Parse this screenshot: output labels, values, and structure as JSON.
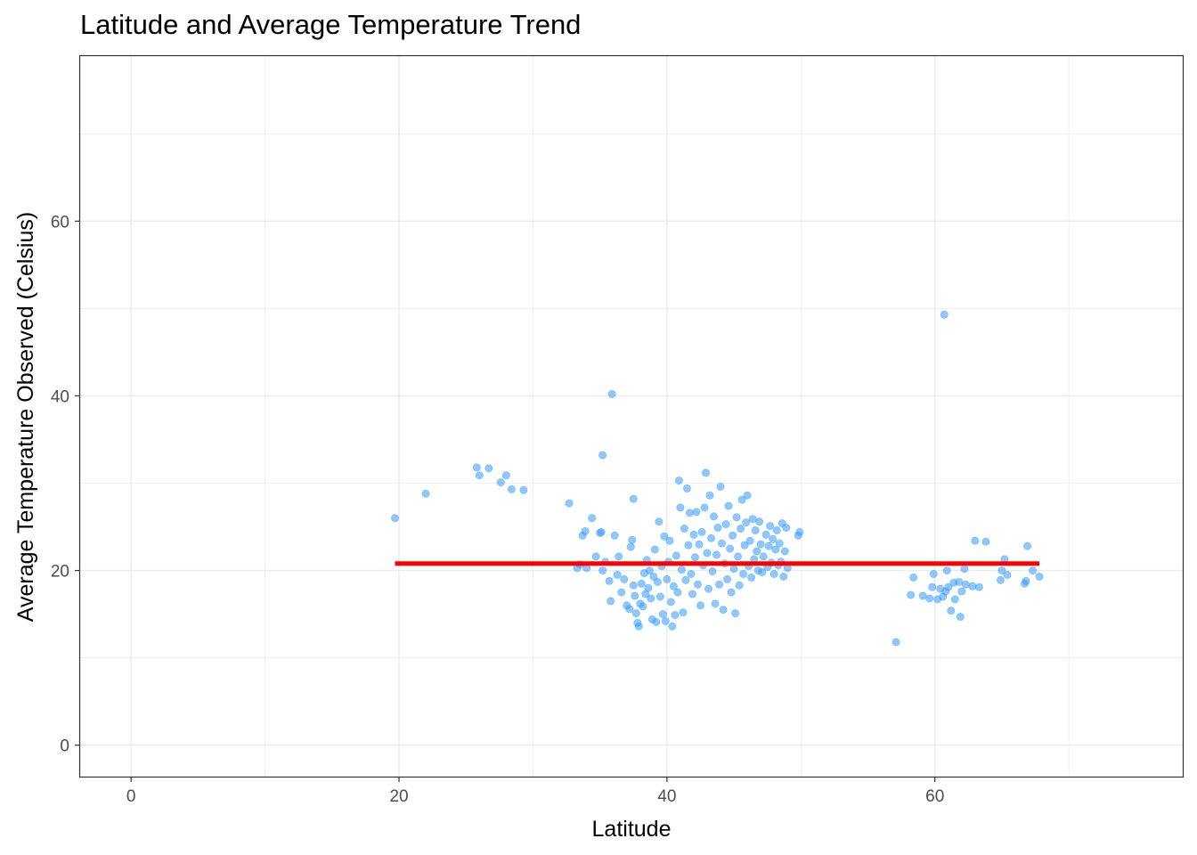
{
  "chart_data": {
    "type": "scatter",
    "title": "Latitude and Average Temperature Trend",
    "xlabel": "Latitude",
    "ylabel": "Average Temperature Observed (Celsius)",
    "xlim": [
      -3.8,
      78.5
    ],
    "ylim": [
      -3.6,
      78.9
    ],
    "x_ticks": [
      0,
      20,
      40,
      60
    ],
    "y_ticks": [
      0,
      20,
      40,
      60
    ],
    "grid": true,
    "point_color": "#3399ff",
    "trend_color": "#ff0000",
    "trend_line": {
      "x": [
        19.7,
        67.8
      ],
      "y": [
        20.8,
        20.8
      ]
    },
    "points": [
      [
        19.7,
        26.0
      ],
      [
        22.0,
        28.8
      ],
      [
        25.8,
        31.8
      ],
      [
        26.0,
        30.9
      ],
      [
        26.7,
        31.7
      ],
      [
        27.6,
        30.1
      ],
      [
        28.0,
        30.9
      ],
      [
        28.4,
        29.3
      ],
      [
        29.3,
        29.2
      ],
      [
        32.7,
        27.7
      ],
      [
        33.3,
        20.3
      ],
      [
        33.5,
        20.7
      ],
      [
        33.7,
        24.0
      ],
      [
        33.9,
        24.5
      ],
      [
        34.0,
        20.3
      ],
      [
        34.4,
        26.0
      ],
      [
        34.7,
        21.6
      ],
      [
        35.0,
        24.3
      ],
      [
        35.1,
        24.4
      ],
      [
        35.2,
        33.2
      ],
      [
        35.2,
        20.0
      ],
      [
        35.4,
        21.0
      ],
      [
        35.7,
        18.8
      ],
      [
        35.8,
        16.5
      ],
      [
        35.9,
        40.2
      ],
      [
        36.1,
        24.0
      ],
      [
        36.3,
        19.5
      ],
      [
        36.4,
        21.6
      ],
      [
        36.6,
        17.5
      ],
      [
        36.8,
        19.0
      ],
      [
        37.0,
        16.0
      ],
      [
        37.2,
        15.6
      ],
      [
        37.3,
        22.7
      ],
      [
        37.4,
        23.5
      ],
      [
        37.5,
        28.2
      ],
      [
        37.5,
        18.3
      ],
      [
        37.6,
        17.1
      ],
      [
        37.7,
        15.1
      ],
      [
        37.8,
        14.0
      ],
      [
        37.9,
        13.6
      ],
      [
        38.0,
        16.2
      ],
      [
        38.1,
        18.5
      ],
      [
        38.2,
        15.9
      ],
      [
        38.3,
        19.7
      ],
      [
        38.4,
        17.3
      ],
      [
        38.5,
        21.2
      ],
      [
        38.6,
        18.0
      ],
      [
        38.7,
        20.0
      ],
      [
        38.8,
        16.8
      ],
      [
        38.9,
        14.4
      ],
      [
        39.0,
        19.3
      ],
      [
        39.1,
        22.4
      ],
      [
        39.2,
        14.1
      ],
      [
        39.3,
        18.7
      ],
      [
        39.4,
        25.6
      ],
      [
        39.5,
        17.0
      ],
      [
        39.6,
        20.5
      ],
      [
        39.7,
        15.0
      ],
      [
        39.8,
        23.9
      ],
      [
        39.9,
        14.2
      ],
      [
        40.0,
        19.0
      ],
      [
        40.1,
        21.0
      ],
      [
        40.2,
        23.4
      ],
      [
        40.3,
        16.4
      ],
      [
        40.4,
        13.6
      ],
      [
        40.5,
        18.2
      ],
      [
        40.6,
        14.9
      ],
      [
        40.7,
        21.7
      ],
      [
        40.8,
        17.5
      ],
      [
        40.9,
        30.3
      ],
      [
        41.0,
        27.2
      ],
      [
        41.1,
        20.1
      ],
      [
        41.2,
        15.2
      ],
      [
        41.3,
        24.8
      ],
      [
        41.4,
        18.9
      ],
      [
        41.5,
        29.4
      ],
      [
        41.6,
        22.9
      ],
      [
        41.7,
        26.6
      ],
      [
        41.8,
        19.6
      ],
      [
        41.9,
        17.3
      ],
      [
        42.0,
        24.1
      ],
      [
        42.1,
        21.5
      ],
      [
        42.2,
        26.7
      ],
      [
        42.3,
        18.4
      ],
      [
        42.4,
        23.0
      ],
      [
        42.5,
        16.0
      ],
      [
        42.6,
        24.4
      ],
      [
        42.7,
        20.6
      ],
      [
        42.8,
        27.2
      ],
      [
        42.9,
        31.2
      ],
      [
        43.0,
        22.0
      ],
      [
        43.1,
        17.9
      ],
      [
        43.2,
        28.6
      ],
      [
        43.3,
        23.7
      ],
      [
        43.4,
        19.9
      ],
      [
        43.5,
        26.2
      ],
      [
        43.6,
        16.2
      ],
      [
        43.7,
        21.8
      ],
      [
        43.8,
        24.9
      ],
      [
        43.9,
        18.4
      ],
      [
        44.0,
        29.6
      ],
      [
        44.1,
        23.1
      ],
      [
        44.2,
        15.5
      ],
      [
        44.3,
        20.8
      ],
      [
        44.4,
        25.3
      ],
      [
        44.5,
        19.0
      ],
      [
        44.6,
        27.4
      ],
      [
        44.7,
        22.5
      ],
      [
        44.8,
        17.5
      ],
      [
        44.9,
        24.0
      ],
      [
        45.0,
        20.2
      ],
      [
        45.1,
        15.1
      ],
      [
        45.2,
        26.1
      ],
      [
        45.3,
        21.6
      ],
      [
        45.4,
        18.3
      ],
      [
        45.5,
        24.8
      ],
      [
        45.6,
        28.1
      ],
      [
        45.7,
        19.6
      ],
      [
        45.8,
        22.9
      ],
      [
        45.9,
        25.5
      ],
      [
        46.0,
        28.6
      ],
      [
        46.1,
        20.5
      ],
      [
        46.2,
        23.4
      ],
      [
        46.3,
        19.2
      ],
      [
        46.4,
        25.9
      ],
      [
        46.5,
        21.3
      ],
      [
        46.6,
        24.6
      ],
      [
        46.7,
        22.2
      ],
      [
        46.8,
        20.0
      ],
      [
        46.9,
        25.6
      ],
      [
        47.0,
        23.0
      ],
      [
        47.1,
        19.8
      ],
      [
        47.2,
        21.6
      ],
      [
        47.4,
        24.1
      ],
      [
        47.5,
        20.4
      ],
      [
        47.6,
        22.8
      ],
      [
        47.7,
        25.1
      ],
      [
        47.8,
        20.9
      ],
      [
        47.9,
        23.6
      ],
      [
        48.0,
        19.6
      ],
      [
        48.1,
        22.4
      ],
      [
        48.2,
        24.6
      ],
      [
        48.3,
        20.6
      ],
      [
        48.4,
        23.1
      ],
      [
        48.5,
        21.0
      ],
      [
        48.6,
        25.4
      ],
      [
        48.7,
        19.3
      ],
      [
        48.8,
        22.2
      ],
      [
        48.9,
        24.9
      ],
      [
        49.0,
        20.3
      ],
      [
        49.8,
        24.0
      ],
      [
        49.9,
        24.4
      ],
      [
        57.1,
        11.8
      ],
      [
        58.2,
        17.2
      ],
      [
        58.4,
        19.2
      ],
      [
        59.1,
        17.1
      ],
      [
        59.6,
        16.8
      ],
      [
        59.8,
        18.1
      ],
      [
        59.9,
        19.6
      ],
      [
        60.2,
        16.7
      ],
      [
        60.4,
        17.9
      ],
      [
        60.6,
        17.0
      ],
      [
        60.8,
        17.6
      ],
      [
        60.9,
        20.0
      ],
      [
        61.0,
        18.1
      ],
      [
        61.2,
        15.4
      ],
      [
        61.4,
        18.6
      ],
      [
        61.5,
        16.7
      ],
      [
        61.8,
        18.7
      ],
      [
        61.9,
        14.7
      ],
      [
        62.0,
        17.6
      ],
      [
        62.2,
        20.2
      ],
      [
        62.3,
        18.4
      ],
      [
        62.8,
        18.2
      ],
      [
        63.0,
        23.4
      ],
      [
        63.3,
        18.1
      ],
      [
        63.8,
        23.3
      ],
      [
        64.9,
        18.9
      ],
      [
        65.0,
        20.0
      ],
      [
        65.2,
        21.3
      ],
      [
        65.4,
        19.5
      ],
      [
        60.7,
        49.3
      ],
      [
        66.7,
        18.5
      ],
      [
        66.8,
        18.8
      ],
      [
        66.9,
        22.8
      ],
      [
        67.3,
        20.0
      ],
      [
        67.8,
        19.3
      ]
    ]
  }
}
